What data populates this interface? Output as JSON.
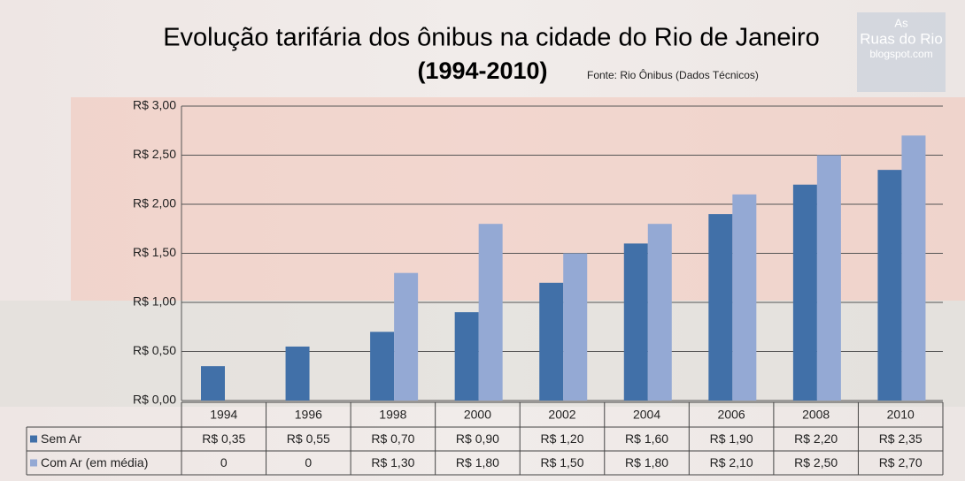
{
  "chart_data": {
    "type": "bar",
    "title": "Evolução tarifária dos ônibus na cidade do Rio de Janeiro",
    "subtitle": "(1994-2010)",
    "source": "Fonte: Rio Ônibus (Dados Técnicos)",
    "watermark": [
      "As",
      "Ruas do Rio",
      "blogspot.com"
    ],
    "categories": [
      "1994",
      "1996",
      "1998",
      "2000",
      "2002",
      "2004",
      "2006",
      "2008",
      "2010"
    ],
    "series": [
      {
        "name": "Sem Ar",
        "color": "#4170a8",
        "values": [
          0.35,
          0.55,
          0.7,
          0.9,
          1.2,
          1.6,
          1.9,
          2.2,
          2.35
        ],
        "value_labels": [
          "R$ 0,35",
          "R$ 0,55",
          "R$ 0,70",
          "R$ 0,90",
          "R$ 1,20",
          "R$ 1,60",
          "R$ 1,90",
          "R$ 2,20",
          "R$ 2,35"
        ]
      },
      {
        "name": "Com Ar (em média)",
        "color": "#94a9d4",
        "values": [
          0,
          0,
          1.3,
          1.8,
          1.5,
          1.8,
          2.1,
          2.5,
          2.7
        ],
        "value_labels": [
          "0",
          "0",
          "R$ 1,30",
          "R$ 1,80",
          "R$ 1,50",
          "R$ 1,80",
          "R$ 2,10",
          "R$ 2,50",
          "R$ 2,70"
        ]
      }
    ],
    "ylim": [
      0,
      3
    ],
    "yticks": [
      {
        "value": 0,
        "label": "R$ 0,00"
      },
      {
        "value": 0.5,
        "label": "R$ 0,50"
      },
      {
        "value": 1,
        "label": "R$ 1,00"
      },
      {
        "value": 1.5,
        "label": "R$ 1,50"
      },
      {
        "value": 2,
        "label": "R$ 2,00"
      },
      {
        "value": 2.5,
        "label": "R$ 2,50"
      },
      {
        "value": 3,
        "label": "R$ 3,00"
      }
    ],
    "grid": true
  }
}
